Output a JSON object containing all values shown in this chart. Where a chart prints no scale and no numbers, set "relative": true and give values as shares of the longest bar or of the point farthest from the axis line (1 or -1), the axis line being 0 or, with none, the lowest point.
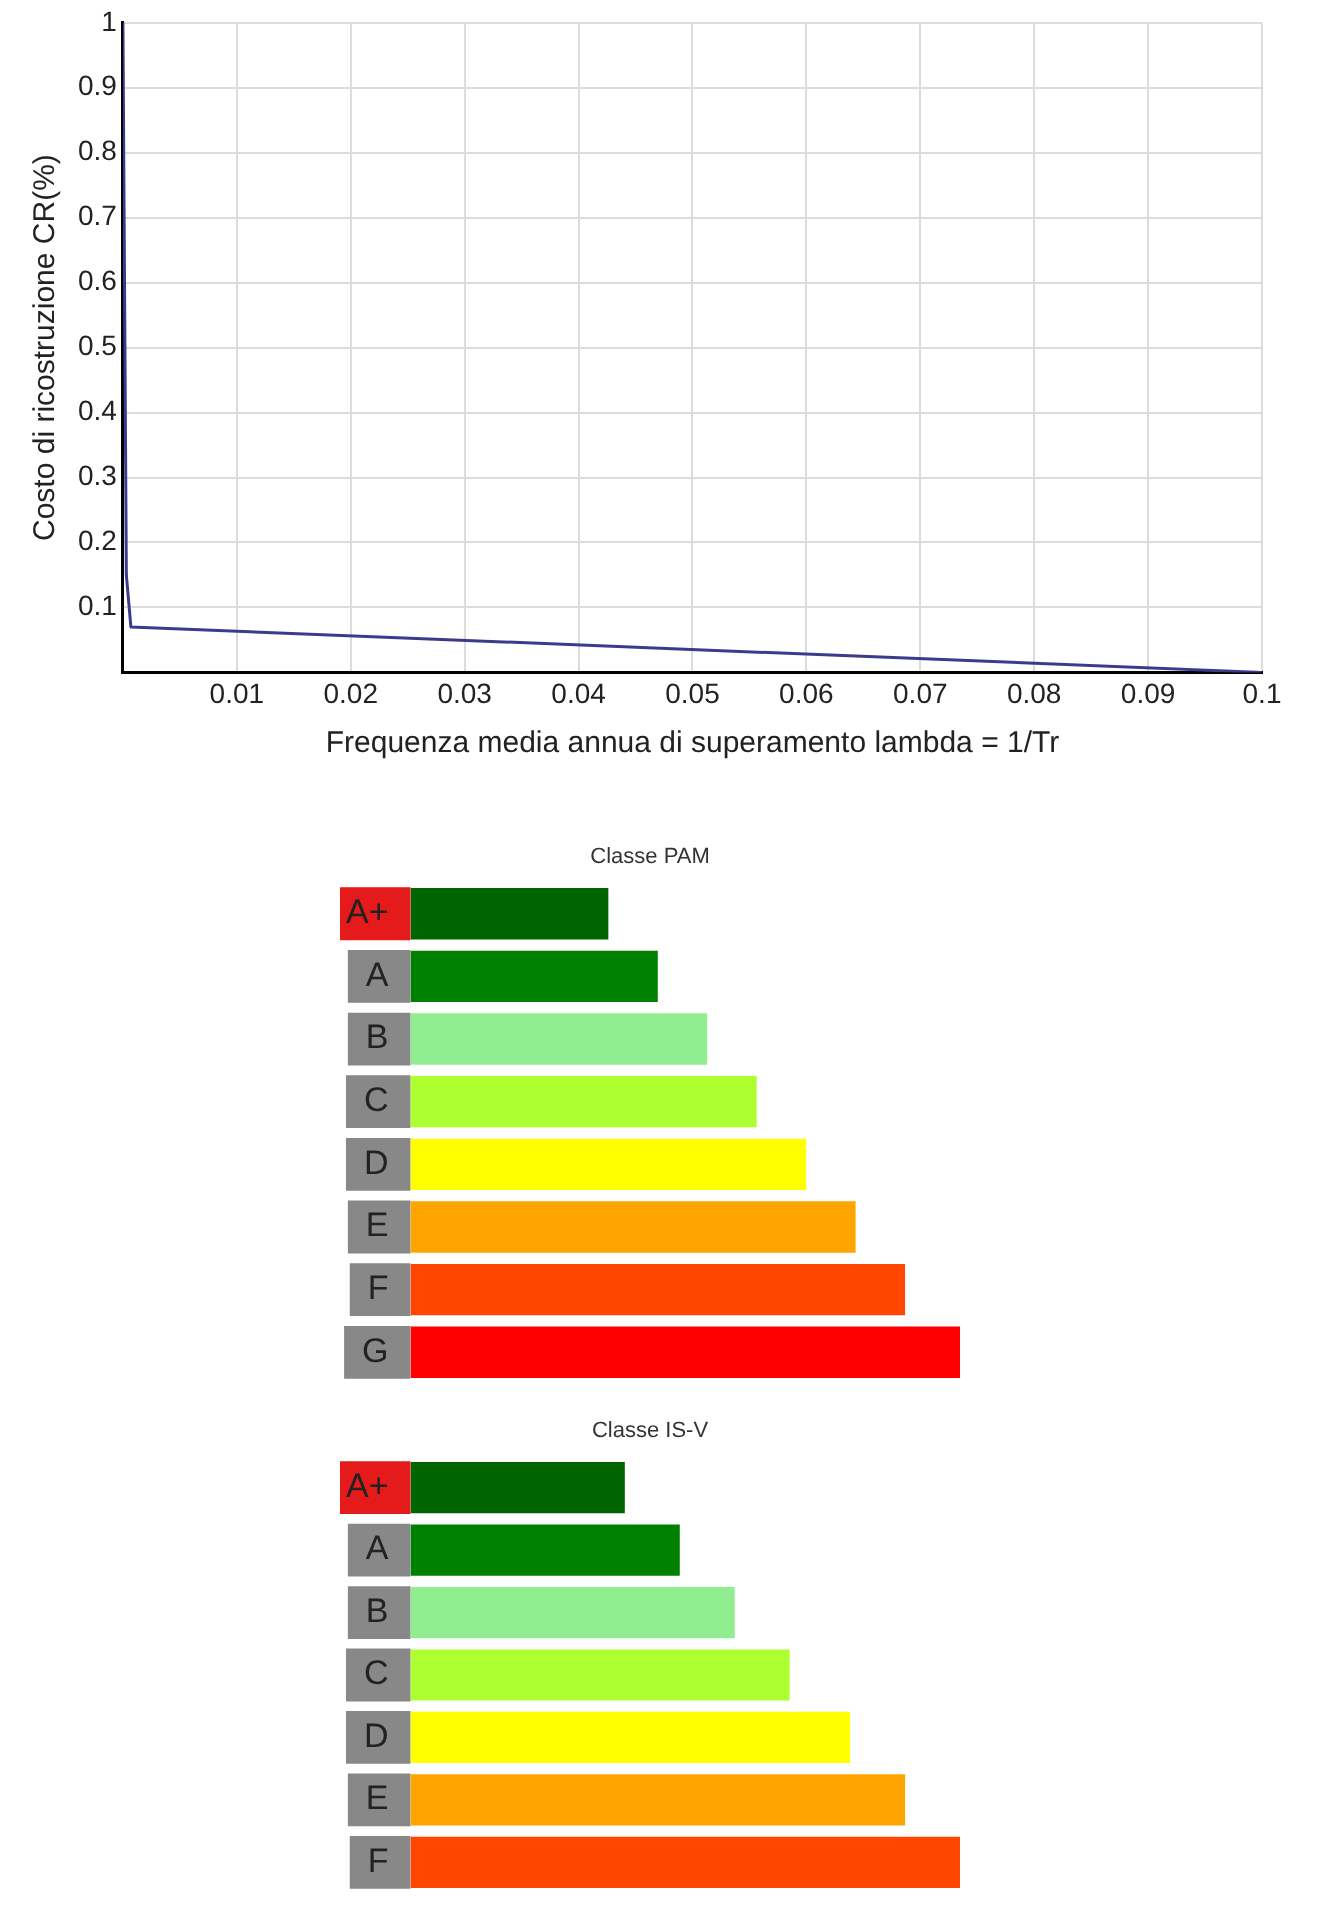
{
  "chart_data": [
    {
      "type": "line",
      "xlabel": "Frequenza media annua di superamento lambda = 1/Tr",
      "ylabel": "Costo di ricostruzione CR(%)",
      "x": [
        0,
        0.0003,
        0.0007,
        0.1
      ],
      "values": [
        1,
        0.15,
        0.07,
        0
      ],
      "color": "#3c3a8c",
      "marker": "none",
      "line_style": "solid",
      "xlim": [
        0,
        0.1
      ],
      "xticks": [
        0.01,
        0.02,
        0.03,
        0.04,
        0.05,
        0.06,
        0.07,
        0.08,
        0.09,
        0.1
      ],
      "ylim": [
        0,
        1
      ],
      "yticks": [
        0.1,
        0.2,
        0.3,
        0.4,
        0.5,
        0.6,
        0.7,
        0.8,
        0.9,
        1
      ],
      "grid": true
    },
    {
      "type": "bar",
      "orientation": "horizontal",
      "relative": true,
      "title": "Classe PAM",
      "categories": [
        "A+",
        "A",
        "B",
        "C",
        "D",
        "E",
        "F",
        "G"
      ],
      "values": [
        0.36,
        0.45,
        0.54,
        0.63,
        0.72,
        0.81,
        0.9,
        1
      ],
      "colors": [
        "#006400",
        "#008000",
        "#90ee90",
        "#adff2f",
        "#ffff00",
        "#ffa500",
        "#ff4500",
        "#ff0000"
      ]
    },
    {
      "type": "bar",
      "orientation": "horizontal",
      "relative": true,
      "title": "Classe IS-V",
      "categories": [
        "A+",
        "A",
        "B",
        "C",
        "D",
        "E",
        "F"
      ],
      "values": [
        0.39,
        0.49,
        0.59,
        0.69,
        0.8,
        0.9,
        1
      ],
      "colors": [
        "#006400",
        "#008000",
        "#90ee90",
        "#adff2f",
        "#ffff00",
        "#ffa500",
        "#ff4500"
      ]
    }
  ]
}
